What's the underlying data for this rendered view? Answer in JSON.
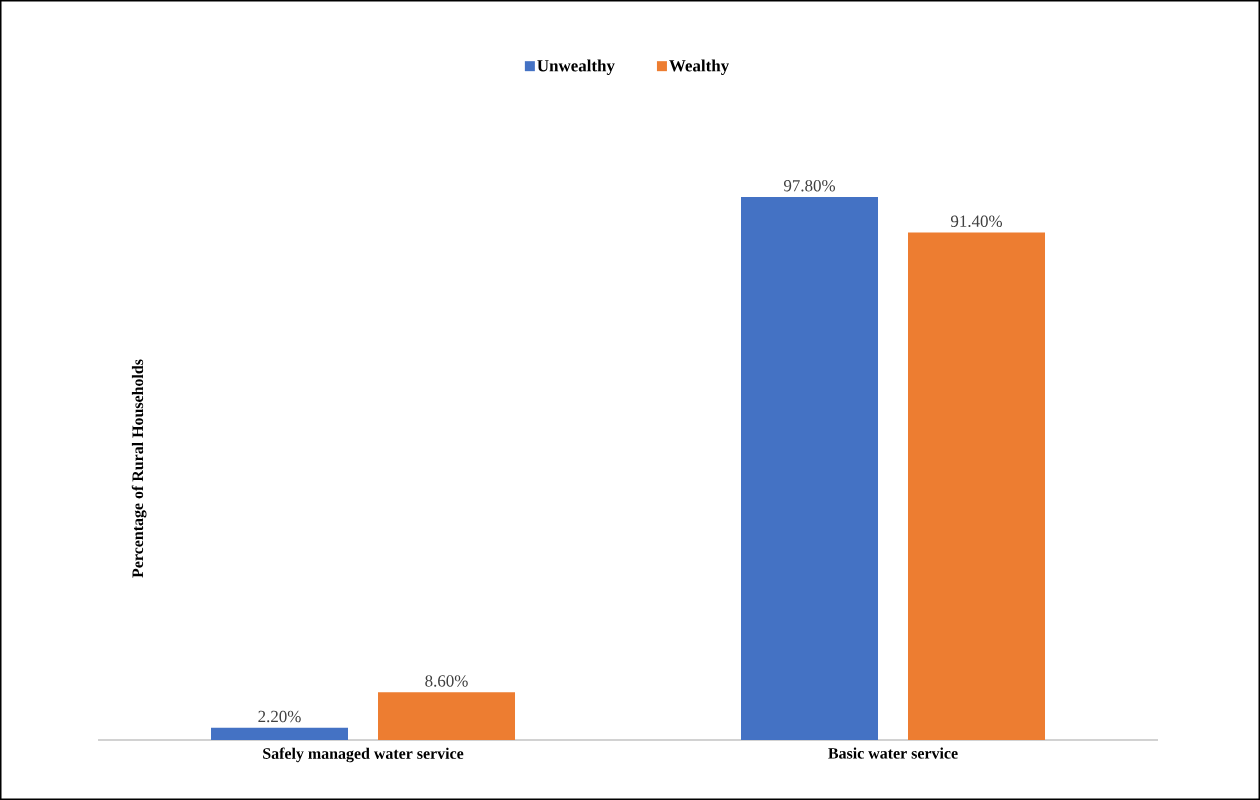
{
  "chart_data": {
    "type": "bar",
    "ylabel": "Percentage of Rural Households",
    "categories": [
      "Safely managed water service",
      "Basic water service"
    ],
    "series": [
      {
        "name": "Unwealthy",
        "color": "#4472c4",
        "values": [
          2.2,
          97.8
        ],
        "value_labels": [
          "2.20%",
          "97.80%"
        ]
      },
      {
        "name": "Wealthy",
        "color": "#ed7d31",
        "values": [
          8.6,
          91.4
        ],
        "value_labels": [
          "8.60%",
          "91.40%"
        ]
      }
    ],
    "legend": "top"
  }
}
